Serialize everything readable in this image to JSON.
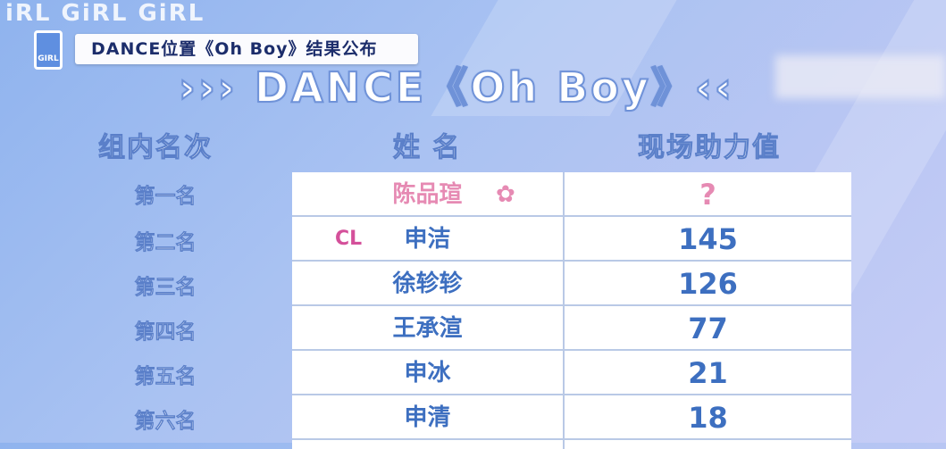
{
  "logo": {
    "text": "iRL GiRL GiRL",
    "badge": "GIRL"
  },
  "banner": {
    "text": "DANCE位置《Oh Boy》结果公布"
  },
  "title": "››› DANCE《Oh Boy》‹‹",
  "headers": [
    "组内名次",
    "姓 名",
    "现场助力值"
  ],
  "rows": [
    {
      "rank": "第一名",
      "name": "陈品瑄",
      "value": "?",
      "icon": "sakura-icon",
      "tag": ""
    },
    {
      "rank": "第二名",
      "name": "申洁",
      "value": "145",
      "tag": "CL"
    },
    {
      "rank": "第三名",
      "name": "徐轸轸",
      "value": "126",
      "tag": ""
    },
    {
      "rank": "第四名",
      "name": "王承渲",
      "value": "77",
      "tag": ""
    },
    {
      "rank": "第五名",
      "name": "申冰",
      "value": "21",
      "tag": ""
    },
    {
      "rank": "第六名",
      "name": "申清",
      "value": "18",
      "tag": ""
    }
  ],
  "colors": {
    "value_text": "#3d6fc0",
    "highlight": "#e68ab3",
    "cl_tag": "#d4509a",
    "background": "#a9c2f2"
  }
}
